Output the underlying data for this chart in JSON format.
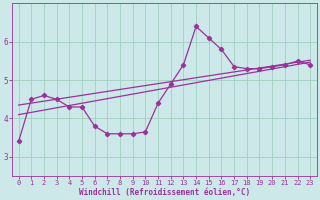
{
  "xlabel": "Windchill (Refroidissement éolien,°C)",
  "bg_color": "#cce8e8",
  "line_color": "#993399",
  "xlim": [
    -0.5,
    23.5
  ],
  "ylim": [
    2.5,
    7.0
  ],
  "xticks": [
    0,
    1,
    2,
    3,
    4,
    5,
    6,
    7,
    8,
    9,
    10,
    11,
    12,
    13,
    14,
    15,
    16,
    17,
    18,
    19,
    20,
    21,
    22,
    23
  ],
  "yticks": [
    3,
    4,
    5,
    6
  ],
  "grid_color": "#99ccbb",
  "curve1_x": [
    0,
    1,
    2,
    3,
    4,
    5,
    6,
    7,
    8,
    9,
    10,
    11,
    12,
    13,
    14,
    15,
    16,
    17,
    18,
    19,
    20,
    21,
    22,
    23
  ],
  "curve1_y": [
    3.4,
    4.5,
    4.6,
    4.5,
    4.3,
    4.3,
    3.8,
    3.6,
    3.6,
    3.6,
    3.65,
    4.4,
    4.9,
    5.4,
    6.4,
    6.1,
    5.8,
    5.35,
    5.3,
    5.3,
    5.35,
    5.4,
    5.5,
    5.4
  ],
  "curve2_x": [
    0,
    23
  ],
  "curve2_y": [
    4.1,
    5.47
  ],
  "curve3_x": [
    0,
    23
  ],
  "curve3_y": [
    4.35,
    5.52
  ],
  "tick_fontsize": 5,
  "xlabel_fontsize": 5.5,
  "marker_size": 2.2,
  "line_width": 0.9
}
